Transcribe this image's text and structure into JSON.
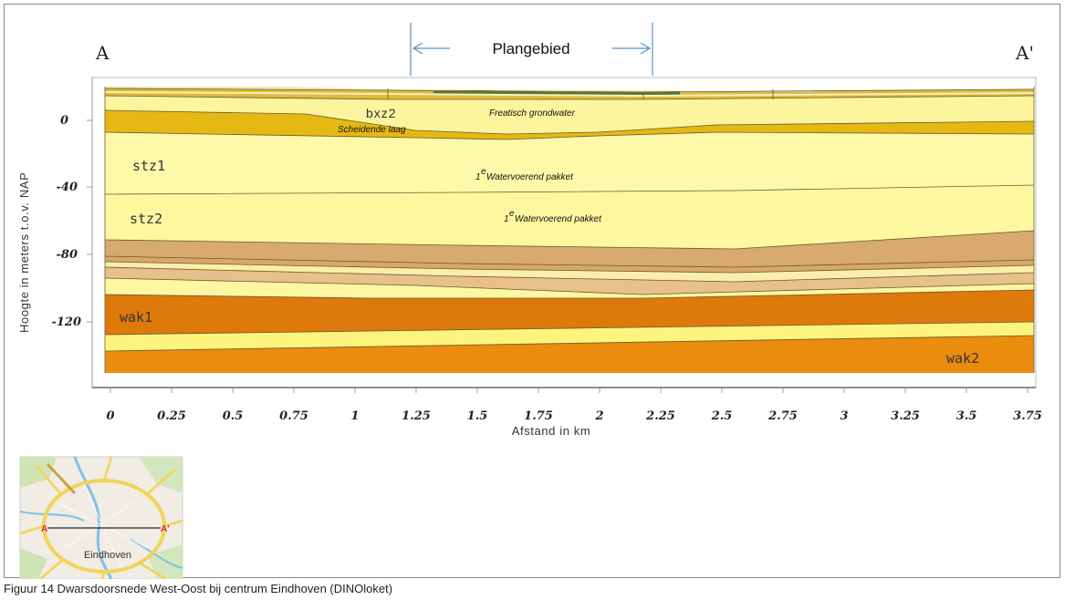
{
  "header": {
    "left_label": "A",
    "right_label": "A'",
    "plan_area_label": "Plangebied"
  },
  "axes": {
    "y_label": "Hoogte in meters t.o.v. NAP",
    "y_ticks": [
      "0",
      "-40",
      "-80",
      "-120"
    ],
    "x_label": "Afstand in km",
    "x_ticks": [
      "0",
      "0.25",
      "0.5",
      "0.75",
      "1",
      "1.25",
      "1.5",
      "1.75",
      "2",
      "2.25",
      "2.5",
      "2.75",
      "3",
      "3.25",
      "3.5",
      "3.75"
    ]
  },
  "layers": {
    "bxz2": "bxz2",
    "stz1": "stz1",
    "stz2": "stz2",
    "wak1": "wak1",
    "wak2": "wak2"
  },
  "annotations": {
    "freatisch": "Freatisch grondwater",
    "scheidende": "Scheidende laag",
    "pakket1": "Watervoerend pakket",
    "pakket2": "Watervoerend pakket",
    "superscript": "e",
    "number": "1"
  },
  "inset_map": {
    "left_label": "A",
    "right_label": "A'",
    "city": "Eindhoven"
  },
  "caption": "Figuur 14 Dwarsdoorsnede West-Oost bij centrum Eindhoven (DINOloket)",
  "colors": {
    "light_yellow": "#fdf89a",
    "gold": "#e4b812",
    "tan": "#d9a86a",
    "light_tan": "#e6be86",
    "orange_dark": "#df7a0c",
    "orange": "#ea8c0e"
  }
}
